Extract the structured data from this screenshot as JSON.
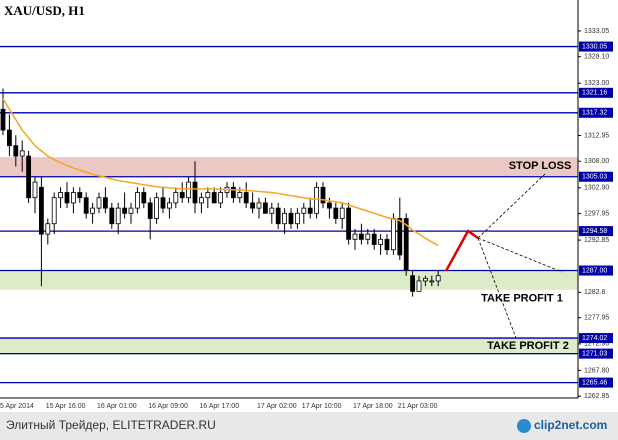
{
  "chart_data": {
    "type": "candlestick",
    "title": "XAU/USD, H1",
    "categories": [
      "5 Apr 2014",
      null,
      null,
      null,
      null,
      null,
      null,
      "15 Apr 16:00",
      null,
      null,
      null,
      null,
      null,
      null,
      null,
      "16 Apr 01:00",
      null,
      null,
      null,
      null,
      null,
      null,
      null,
      "16 Apr 09:00",
      null,
      null,
      null,
      null,
      null,
      null,
      null,
      "16 Apr 17:00",
      null,
      null,
      null,
      null,
      null,
      null,
      null,
      null,
      "17 Apr 02:00",
      null,
      null,
      null,
      null,
      null,
      null,
      "17 Apr 10:00",
      null,
      null,
      null,
      null,
      null,
      null,
      null,
      "17 Apr 18:00",
      null,
      null,
      null,
      null,
      null,
      null,
      "21 Apr 03:00",
      null,
      null,
      null,
      null,
      null,
      null
    ],
    "open": [
      1318,
      1314,
      1311,
      1309,
      1309,
      1301,
      1303,
      1294,
      1296,
      1301,
      1302,
      1300,
      1302,
      1301,
      1298,
      1299,
      1301,
      1299,
      1296,
      1299,
      1298,
      1299,
      1302,
      1300,
      1297,
      1301,
      1299,
      1300,
      1302,
      1301,
      1304,
      1300,
      1301,
      1302,
      1300,
      1302,
      1303,
      1301,
      1302,
      1300,
      1299,
      1300,
      1298,
      1299,
      1296,
      1298,
      1296,
      1298,
      1299,
      1298,
      1303,
      1300,
      1299,
      1297,
      1299,
      1293,
      1294,
      1293,
      1294,
      1292,
      1293,
      1291,
      1297,
      1297,
      1286,
      1283,
      1285,
      1285,
      1285
    ],
    "high": [
      1322,
      1317,
      1313,
      1312,
      1310,
      1305,
      1305,
      1297,
      1302,
      1303,
      1304,
      1303,
      1303,
      1302,
      1300,
      1302,
      1303,
      1300,
      1300,
      1302,
      1300,
      1303,
      1303,
      1301,
      1302,
      1303,
      1301,
      1303,
      1304,
      1305,
      1308,
      1302,
      1303,
      1303,
      1303,
      1304,
      1304,
      1303,
      1304,
      1302,
      1301,
      1301,
      1300,
      1300,
      1299,
      1299,
      1299,
      1300,
      1301,
      1304,
      1304,
      1301,
      1300,
      1300,
      1300,
      1295,
      1296,
      1295,
      1295,
      1294,
      1294,
      1298,
      1301,
      1298,
      1287,
      1286,
      1286,
      1286,
      1287
    ],
    "low": [
      1313,
      1309,
      1307,
      1306,
      1300,
      1298,
      1284,
      1292,
      1294,
      1299,
      1299,
      1298,
      1300,
      1297,
      1296,
      1298,
      1298,
      1295,
      1294,
      1297,
      1296,
      1298,
      1299,
      1293,
      1296,
      1298,
      1297,
      1299,
      1300,
      1300,
      1298,
      1298,
      1299,
      1300,
      1299,
      1301,
      1300,
      1300,
      1299,
      1298,
      1297,
      1298,
      1296,
      1295,
      1294,
      1295,
      1295,
      1296,
      1297,
      1297,
      1299,
      1297,
      1296,
      1295,
      1292,
      1291,
      1292,
      1292,
      1291,
      1290,
      1290,
      1290,
      1289,
      1286,
      1282,
      1283,
      1284,
      1284,
      1284
    ],
    "close": [
      1314,
      1311,
      1309,
      1310,
      1301,
      1304,
      1294,
      1296,
      1301,
      1302,
      1300,
      1302,
      1301,
      1298,
      1299,
      1301,
      1299,
      1296,
      1299,
      1298,
      1299,
      1302,
      1300,
      1297,
      1301,
      1299,
      1300,
      1302,
      1301,
      1304,
      1300,
      1301,
      1302,
      1300,
      1302,
      1303,
      1301,
      1302,
      1300,
      1299,
      1300,
      1298,
      1299,
      1296,
      1298,
      1296,
      1298,
      1299,
      1298,
      1303,
      1300,
      1299,
      1297,
      1299,
      1293,
      1294,
      1293,
      1294,
      1292,
      1293,
      1291,
      1297,
      1290,
      1287,
      1283,
      1285,
      1285.5,
      1285,
      1286
    ],
    "up_color": "#ffffff",
    "down_color": "#000000",
    "ma": {
      "color": "#f5a623",
      "values": [
        1320,
        1318,
        1316,
        1314,
        1312.5,
        1311,
        1310,
        1309,
        1308.3,
        1307.7,
        1307.2,
        1306.7,
        1306.3,
        1305.9,
        1305.5,
        1305.2,
        1304.9,
        1304.6,
        1304.3,
        1304.1,
        1303.9,
        1303.7,
        1303.5,
        1303.3,
        1303.1,
        1303,
        1302.9,
        1302.8,
        1302.7,
        1302.7,
        1302.7,
        1302.7,
        1302.7,
        1302.7,
        1302.6,
        1302.6,
        1302.5,
        1302.5,
        1302.4,
        1302.3,
        1302.2,
        1302.1,
        1302,
        1301.8,
        1301.6,
        1301.4,
        1301.2,
        1301,
        1300.8,
        1300.7,
        1300.6,
        1300.4,
        1300.2,
        1300,
        1299.6,
        1299.2,
        1298.8,
        1298.4,
        1298,
        1297.6,
        1297.2,
        1296.9,
        1296.6,
        1295.8,
        1294.8,
        1294,
        1293.2,
        1292.5,
        1291.8
      ]
    },
    "ylim": [
      1262.5,
      1339.0
    ],
    "yticks": [
      1333.05,
      {
        "value": 1328.1,
        "label": "1328.10"
      },
      {
        "value": 1323.0,
        "label": "1323.00"
      },
      1312.95,
      {
        "value": 1308.0,
        "label": "1308.00"
      },
      {
        "value": 1302.9,
        "label": "1302.90"
      },
      1297.95,
      1292.85,
      1282.8,
      1277.95,
      {
        "value": 1272.9,
        "label": "1272.90"
      },
      {
        "value": 1267.8,
        "label": "1267.80"
      },
      1262.85
    ],
    "levels": {
      "color": "#0000aa",
      "values": [
        1330.05,
        1321.16,
        1317.32,
        1305.03,
        1294.58,
        {
          "value": 1287.0,
          "label": "1287.00"
        },
        1274.02,
        1271.03,
        1265.46
      ]
    },
    "zones": [
      {
        "from": 1305.0,
        "to": 1308.8,
        "color": "#ecc8c4",
        "label": "STOP LOSS"
      },
      {
        "from": 1283.3,
        "to": 1287.1,
        "color": "#dcebc8",
        "label": "TAKE PROFIT  1"
      },
      {
        "from": 1270.8,
        "to": 1274.2,
        "color": "#dcebc8",
        "label": "TAKE PROFIT  2"
      }
    ]
  },
  "footer": {
    "text": "Элитный Трейдер, ELITETRADER.RU",
    "logo": "clip2net.com"
  }
}
